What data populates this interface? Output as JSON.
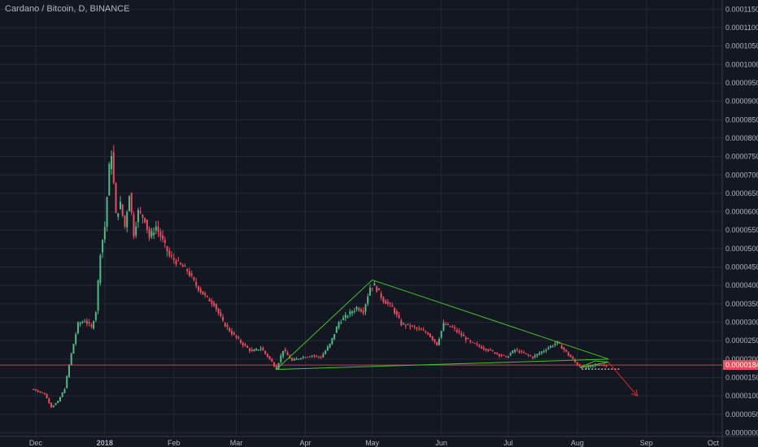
{
  "chart_data": {
    "type": "candlestick",
    "title": "Cardano / Bitcoin, D, BINANCE",
    "symbol": "Cardano / Bitcoin",
    "interval": "D",
    "exchange": "BINANCE",
    "last_price": "0.00001840",
    "ylim": [
      -1e-06,
      0.0001175
    ],
    "y_ticks": [
      "0.00011500",
      "0.00011000",
      "0.00010500",
      "0.00010000",
      "0.00009500",
      "0.00009000",
      "0.00008500",
      "0.00008000",
      "0.00007500",
      "0.00007000",
      "0.00006500",
      "0.00006000",
      "0.00005500",
      "0.00005000",
      "0.00004500",
      "0.00004000",
      "0.00003500",
      "0.00003000",
      "0.00002500",
      "0.00002000",
      "0.00001500",
      "0.00001000",
      "0.00000500",
      "0.00000000"
    ],
    "x_ticks": [
      {
        "label": "Dec",
        "date": "2017-12-01"
      },
      {
        "label": "2018",
        "date": "2018-01-01",
        "bold": true
      },
      {
        "label": "Feb",
        "date": "2018-02-01"
      },
      {
        "label": "Mar",
        "date": "2018-03-01"
      },
      {
        "label": "Apr",
        "date": "2018-04-01"
      },
      {
        "label": "May",
        "date": "2018-05-01"
      },
      {
        "label": "Jun",
        "date": "2018-06-01"
      },
      {
        "label": "Jul",
        "date": "2018-07-01"
      },
      {
        "label": "Aug",
        "date": "2018-08-01"
      },
      {
        "label": "Sep",
        "date": "2018-09-01"
      },
      {
        "label": "Oct",
        "date": "2018-10-01"
      }
    ],
    "close_series": [
      [
        "2017-11-30",
        1.18e-05
      ],
      [
        "2017-12-05",
        1.05e-05
      ],
      [
        "2017-12-08",
        7e-06
      ],
      [
        "2017-12-11",
        8.5e-06
      ],
      [
        "2017-12-14",
        1.2e-05
      ],
      [
        "2017-12-17",
        2.15e-05
      ],
      [
        "2017-12-20",
        2.95e-05
      ],
      [
        "2017-12-23",
        3.05e-05
      ],
      [
        "2017-12-26",
        2.85e-05
      ],
      [
        "2017-12-28",
        3.3e-05
      ],
      [
        "2017-12-30",
        4.9e-05
      ],
      [
        "2018-01-01",
        5.6e-05
      ],
      [
        "2018-01-03",
        7.2e-05
      ],
      [
        "2018-01-04",
        7.6e-05
      ],
      [
        "2018-01-06",
        5.9e-05
      ],
      [
        "2018-01-08",
        6.2e-05
      ],
      [
        "2018-01-10",
        5.6e-05
      ],
      [
        "2018-01-12",
        6.5e-05
      ],
      [
        "2018-01-14",
        5.4e-05
      ],
      [
        "2018-01-16",
        6e-05
      ],
      [
        "2018-01-19",
        5.8e-05
      ],
      [
        "2018-01-21",
        5.3e-05
      ],
      [
        "2018-01-24",
        5.6e-05
      ],
      [
        "2018-01-27",
        5.2e-05
      ],
      [
        "2018-01-30",
        4.8e-05
      ],
      [
        "2018-02-03",
        4.6e-05
      ],
      [
        "2018-02-07",
        4.4e-05
      ],
      [
        "2018-02-11",
        4e-05
      ],
      [
        "2018-02-15",
        3.7e-05
      ],
      [
        "2018-02-19",
        3.5e-05
      ],
      [
        "2018-02-23",
        3e-05
      ],
      [
        "2018-02-27",
        2.7e-05
      ],
      [
        "2018-03-04",
        2.4e-05
      ],
      [
        "2018-03-08",
        2.2e-05
      ],
      [
        "2018-03-12",
        2.3e-05
      ],
      [
        "2018-03-16",
        2e-05
      ],
      [
        "2018-03-19",
        1.75e-05
      ],
      [
        "2018-03-22",
        2.25e-05
      ],
      [
        "2018-03-26",
        1.95e-05
      ],
      [
        "2018-03-30",
        2.05e-05
      ],
      [
        "2018-04-04",
        2.1e-05
      ],
      [
        "2018-04-08",
        2.05e-05
      ],
      [
        "2018-04-12",
        2.4e-05
      ],
      [
        "2018-04-16",
        3e-05
      ],
      [
        "2018-04-20",
        3.2e-05
      ],
      [
        "2018-04-24",
        3.4e-05
      ],
      [
        "2018-04-27",
        3.3e-05
      ],
      [
        "2018-04-30",
        3.95e-05
      ],
      [
        "2018-05-02",
        4e-05
      ],
      [
        "2018-05-06",
        3.6e-05
      ],
      [
        "2018-05-10",
        3.4e-05
      ],
      [
        "2018-05-14",
        2.95e-05
      ],
      [
        "2018-05-18",
        2.9e-05
      ],
      [
        "2018-05-22",
        2.8e-05
      ],
      [
        "2018-05-26",
        2.7e-05
      ],
      [
        "2018-05-30",
        2.4e-05
      ],
      [
        "2018-06-02",
        2.95e-05
      ],
      [
        "2018-06-06",
        2.85e-05
      ],
      [
        "2018-06-10",
        2.65e-05
      ],
      [
        "2018-06-14",
        2.45e-05
      ],
      [
        "2018-06-18",
        2.35e-05
      ],
      [
        "2018-06-22",
        2.25e-05
      ],
      [
        "2018-06-26",
        2.15e-05
      ],
      [
        "2018-06-30",
        2.05e-05
      ],
      [
        "2018-07-04",
        2.25e-05
      ],
      [
        "2018-07-08",
        2.15e-05
      ],
      [
        "2018-07-12",
        2.05e-05
      ],
      [
        "2018-07-16",
        2.2e-05
      ],
      [
        "2018-07-20",
        2.35e-05
      ],
      [
        "2018-07-23",
        2.45e-05
      ],
      [
        "2018-07-26",
        2.25e-05
      ],
      [
        "2018-07-29",
        2.05e-05
      ],
      [
        "2018-08-01",
        1.85e-05
      ],
      [
        "2018-08-04",
        1.75e-05
      ],
      [
        "2018-08-07",
        1.8e-05
      ],
      [
        "2018-08-10",
        1.85e-05
      ],
      [
        "2018-08-14",
        1.84e-05
      ]
    ],
    "drawings": {
      "triangle_1": [
        [
          "2018-03-19",
          1.72e-05
        ],
        [
          "2018-05-01",
          4.15e-05
        ],
        [
          "2018-08-15",
          2e-05
        ]
      ],
      "triangle_2": [
        [
          "2018-08-02",
          1.77e-05
        ],
        [
          "2018-08-09",
          1.95e-05
        ],
        [
          "2018-08-15",
          1.92e-05
        ]
      ],
      "dotted_support": [
        [
          "2018-08-03",
          1.73e-05
        ],
        [
          "2018-08-20",
          1.73e-05
        ]
      ],
      "arrow": [
        [
          "2018-08-15",
          1.91e-05
        ],
        [
          "2018-08-28",
          1e-05
        ]
      ]
    },
    "colors": {
      "background": "#131722",
      "grid": "#242837",
      "up": "#53b987",
      "down": "#eb4d5c",
      "triangle": "#48c12e",
      "arrow": "#e3242b",
      "price_line": "#eb4d5c",
      "price_label": "#eb4d5c",
      "axis_text": "#b2b5be"
    }
  }
}
